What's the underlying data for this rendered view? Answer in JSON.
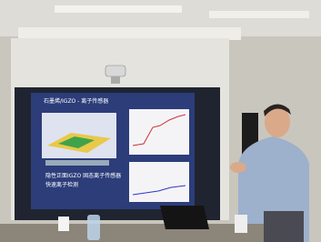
{
  "slide": {
    "title": "石墨烯/IGZO - 离子传感器",
    "bullets": [
      "隐性正面IGZO 固态离子传感器",
      "快速离子检测"
    ]
  }
}
